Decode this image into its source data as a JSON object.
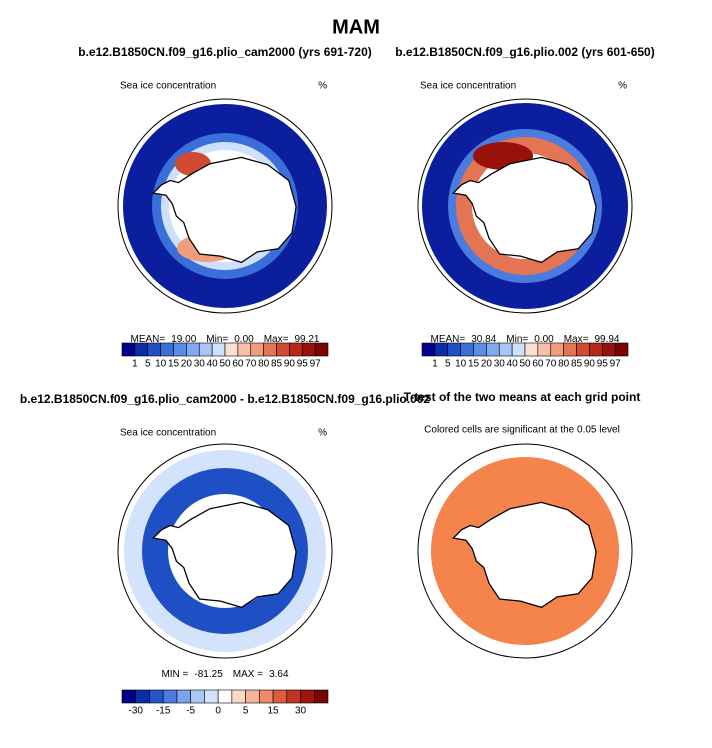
{
  "title": "MAM",
  "panels": [
    {
      "title": "b.e12.B1850CN.f09_g16.plio_cam2000 (yrs 691-720)",
      "left_label": "Sea ice concentration",
      "right_label": "%",
      "stats": [
        {
          "label": "MEAN=",
          "value": "19.00"
        },
        {
          "label": "Min=",
          "value": "0.00"
        },
        {
          "label": "Max=",
          "value": "99.21"
        }
      ],
      "colorbar": {
        "labels": [
          1,
          5,
          10,
          15,
          20,
          30,
          40,
          50,
          60,
          70,
          80,
          85,
          90,
          95,
          97
        ],
        "colors": [
          "#00008b",
          "#0a2ea8",
          "#1f4fc4",
          "#3a6fd8",
          "#5b8ce6",
          "#7fa9f0",
          "#a7c6f7",
          "#cfe0fb",
          "#fbe0d2",
          "#f7c0a8",
          "#f09c7d",
          "#e37454",
          "#d14a32",
          "#b8281a",
          "#98120b",
          "#7a0403"
        ]
      }
    },
    {
      "title": "b.e12.B1850CN.f09_g16.plio.002 (yrs 601-650)",
      "left_label": "Sea ice concentration",
      "right_label": "%",
      "stats": [
        {
          "label": "MEAN=",
          "value": "30.84"
        },
        {
          "label": "Min=",
          "value": "0.00"
        },
        {
          "label": "Max=",
          "value": "99.94"
        }
      ],
      "colorbar": {
        "labels": [
          1,
          5,
          10,
          15,
          20,
          30,
          40,
          50,
          60,
          70,
          80,
          85,
          90,
          95,
          97
        ],
        "colors": [
          "#00008b",
          "#0a2ea8",
          "#1f4fc4",
          "#3a6fd8",
          "#5b8ce6",
          "#7fa9f0",
          "#a7c6f7",
          "#cfe0fb",
          "#fbe0d2",
          "#f7c0a8",
          "#f09c7d",
          "#e37454",
          "#d14a32",
          "#b8281a",
          "#98120b",
          "#7a0403"
        ]
      }
    },
    {
      "title": "b.e12.B1850CN.f09_g16.plio_cam2000 - b.e12.B1850CN.f09_g16.plio.002",
      "left_label": "Sea ice concentration",
      "right_label": "%",
      "stats": [
        {
          "label": "MIN =",
          "value": "-81.25"
        },
        {
          "label": "MAX =",
          "value": "3.64"
        }
      ],
      "colorbar": {
        "labels": [
          -30,
          -15,
          -5,
          0,
          5,
          15,
          30
        ],
        "colors": [
          "#00008b",
          "#0a2ea8",
          "#2554c7",
          "#4a7cdf",
          "#7aa3ee",
          "#a9c7f7",
          "#d3e3fb",
          "#ffffff",
          "#fbd9c9",
          "#f6b399",
          "#ee8a69",
          "#dc5a3d",
          "#c23420",
          "#a0160d",
          "#7a0403"
        ]
      }
    },
    {
      "title": "T-test of the two means at each grid point",
      "left_label": "Colored cells are significant at the 0.05 level"
    }
  ]
}
